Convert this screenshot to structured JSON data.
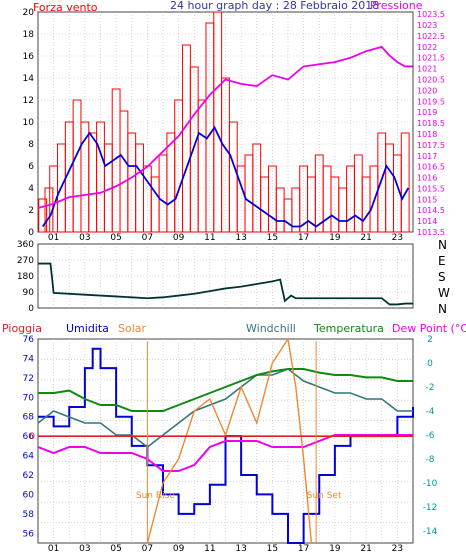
{
  "header": {
    "left_label": "Forza vento",
    "title": "24 hour graph day : 28 Febbraio 2018",
    "right_label": "Pressione"
  },
  "colors": {
    "wind": "#ff0000",
    "wind_avg": "#0000dd",
    "pressure": "#ee00ee",
    "direction": "#003333",
    "humidity": "#0000dd",
    "solar": "#ee8833",
    "windchill": "#337777",
    "temperature": "#118811",
    "dewpoint": "#ee00ee",
    "rain": "#dd2222",
    "header_blue": "#3333aa",
    "axis_teal": "#009999"
  },
  "hour_ticks": [
    "01",
    "03",
    "05",
    "07",
    "09",
    "11",
    "13",
    "15",
    "17",
    "19",
    "21",
    "23"
  ],
  "chart_data": [
    {
      "type": "line",
      "title": "24 hour graph day : 28 Febbraio 2018",
      "x_unit": "hour",
      "xlim": [
        0,
        24
      ],
      "y_left": {
        "label": "Forza vento",
        "ticks": [
          "0",
          "2",
          "4",
          "6",
          "8",
          "10",
          "12",
          "14",
          "16",
          "18",
          "20"
        ],
        "ylim": [
          0,
          20
        ]
      },
      "y_right": {
        "label": "Pressione",
        "ticks": [
          "1013.5",
          "1014",
          "1014.5",
          "1015",
          "1015.5",
          "1016",
          "1016.5",
          "1017",
          "1017.5",
          "1018",
          "1018.5",
          "1019",
          "1019.5",
          "1020",
          "1020.5",
          "1021",
          "1021.5",
          "1022",
          "1022.5",
          "1023",
          "1023.5"
        ],
        "ylim": [
          1013.5,
          1023.6
        ]
      },
      "series": [
        {
          "name": "Forza vento",
          "axis": "left",
          "style": "bars",
          "x": [
            0.3,
            0.7,
            1.0,
            1.5,
            2.0,
            2.5,
            3.0,
            3.5,
            4.0,
            4.5,
            5.0,
            5.5,
            6.0,
            6.5,
            7.0,
            7.5,
            8.0,
            8.5,
            9.0,
            9.5,
            10.0,
            10.5,
            11.0,
            11.5,
            12.0,
            12.5,
            13.0,
            13.5,
            14.0,
            14.5,
            15.0,
            15.5,
            16.0,
            16.5,
            17.0,
            17.5,
            18.0,
            18.5,
            19.0,
            19.5,
            20.0,
            20.5,
            21.0,
            21.5,
            22.0,
            22.5,
            23.0,
            23.5
          ],
          "y": [
            3,
            4,
            6,
            8,
            10,
            12,
            10,
            9,
            10,
            8,
            13,
            11,
            9,
            8,
            6,
            5,
            7,
            9,
            12,
            17,
            15,
            12,
            19,
            20,
            14,
            10,
            6,
            7,
            8,
            5,
            6,
            4,
            3,
            4,
            6,
            5,
            7,
            6,
            5,
            4,
            6,
            7,
            5,
            6,
            9,
            8,
            7,
            9
          ]
        },
        {
          "name": "Wind average",
          "axis": "left",
          "x": [
            0.3,
            0.8,
            1.3,
            1.8,
            2.3,
            2.8,
            3.3,
            3.8,
            4.3,
            4.8,
            5.3,
            5.8,
            6.3,
            6.8,
            7.3,
            7.8,
            8.3,
            8.8,
            9.3,
            9.8,
            10.3,
            10.8,
            11.3,
            11.8,
            12.3,
            12.8,
            13.3,
            13.8,
            14.3,
            14.8,
            15.3,
            15.8,
            16.3,
            16.8,
            17.3,
            17.8,
            18.3,
            18.8,
            19.3,
            19.8,
            20.3,
            20.8,
            21.3,
            21.8,
            22.3,
            22.8,
            23.3,
            23.7
          ],
          "y": [
            0.5,
            1.5,
            3.5,
            5,
            6.5,
            8,
            9,
            8,
            6,
            6.5,
            7,
            6,
            6,
            5,
            4,
            3,
            2.5,
            3,
            5,
            7,
            9,
            8.5,
            9.5,
            8,
            7,
            5,
            3,
            2.5,
            2,
            1.5,
            1,
            1,
            0.5,
            0.5,
            1,
            0.5,
            1,
            1.5,
            1,
            1,
            1.5,
            1,
            2,
            4,
            6,
            5,
            3,
            4
          ]
        },
        {
          "name": "Pressione",
          "axis": "right",
          "x": [
            0,
            1,
            2,
            3,
            4,
            5,
            6,
            7,
            8,
            9,
            10,
            11,
            12,
            13,
            14,
            15,
            16,
            17,
            18,
            19,
            20,
            21,
            22,
            22.5,
            23,
            23.5,
            24
          ],
          "y": [
            1014.6,
            1014.8,
            1015.1,
            1015.2,
            1015.3,
            1015.6,
            1016.0,
            1016.5,
            1017.2,
            1017.9,
            1018.9,
            1019.8,
            1020.5,
            1020.3,
            1020.2,
            1020.7,
            1020.5,
            1021.1,
            1021.2,
            1021.3,
            1021.5,
            1021.8,
            1022.0,
            1021.6,
            1021.3,
            1021.1,
            1021.1
          ]
        }
      ]
    },
    {
      "type": "line",
      "title": "",
      "xlim": [
        0,
        24
      ],
      "y_left": {
        "label": "",
        "ticks": [
          "0",
          "90",
          "180",
          "270",
          "360"
        ],
        "ylim": [
          0,
          360
        ]
      },
      "y_right": {
        "label": "",
        "ticks": [
          "N",
          "W",
          "S",
          "E",
          "N"
        ]
      },
      "series": [
        {
          "name": "",
          "axis": "left",
          "x": [
            0,
            0.8,
            1.0,
            3,
            5,
            7,
            8,
            9,
            10,
            11,
            12,
            13,
            14,
            15,
            15.5,
            15.8,
            16.2,
            16.5,
            17,
            18,
            20,
            21,
            22,
            22.5,
            23,
            23.5,
            24
          ],
          "y": [
            250,
            250,
            85,
            75,
            65,
            55,
            60,
            70,
            80,
            95,
            110,
            120,
            135,
            150,
            160,
            40,
            70,
            55,
            55,
            55,
            55,
            55,
            55,
            20,
            20,
            25,
            25
          ]
        }
      ]
    },
    {
      "type": "line",
      "title": "",
      "xlim": [
        0,
        24
      ],
      "legend": [
        "Pioggia",
        "Umidita",
        "Solar",
        "Windchill",
        "Temperatura",
        "Dew Point (°C)"
      ],
      "y_left": {
        "label": "",
        "ticks": [
          "56",
          "58",
          "60",
          "62",
          "64",
          "66",
          "68",
          "70",
          "72",
          "74",
          "76"
        ],
        "ylim": [
          55,
          76
        ]
      },
      "y_right": {
        "label": "",
        "ticks": [
          "-14",
          "-12",
          "-10",
          "-8",
          "-6",
          "-4",
          "-2",
          "0",
          "2"
        ],
        "ylim": [
          -15,
          2
        ]
      },
      "annotations": [
        {
          "label": "Sun Rise",
          "x": 7.0
        },
        {
          "label": "Sun Set",
          "x": 17.8
        }
      ],
      "series": [
        {
          "name": "Umidita",
          "axis": "left",
          "x": [
            0,
            1,
            2,
            3,
            3.5,
            4,
            5,
            6,
            7,
            8,
            9,
            10,
            11,
            12,
            13,
            14,
            15,
            16,
            17,
            18,
            19,
            20,
            21,
            22,
            23,
            24
          ],
          "y": [
            68,
            67,
            69,
            73,
            75,
            73,
            68,
            65,
            63,
            60,
            58,
            59,
            61,
            66,
            62,
            60,
            58,
            55,
            58,
            62,
            65,
            66,
            66,
            66,
            68,
            69
          ]
        },
        {
          "name": "Windchill",
          "axis": "right",
          "x": [
            0,
            1,
            2,
            3,
            4,
            5,
            6,
            7,
            8,
            9,
            10,
            11,
            12,
            13,
            14,
            15,
            16,
            17,
            18,
            19,
            20,
            21,
            22,
            23,
            24
          ],
          "y": [
            -5,
            -4,
            -4.5,
            -5,
            -5,
            -6,
            -6,
            -7,
            -6,
            -5,
            -4,
            -3.5,
            -3,
            -2,
            -1,
            -1,
            -0.5,
            -1.5,
            -2,
            -2.5,
            -2.5,
            -3,
            -3,
            -4,
            -4
          ]
        },
        {
          "name": "Temperatura",
          "axis": "right",
          "x": [
            0,
            1,
            2,
            3,
            4,
            5,
            6,
            7,
            8,
            9,
            10,
            11,
            12,
            13,
            14,
            15,
            16,
            17,
            18,
            19,
            20,
            21,
            22,
            23,
            24
          ],
          "y": [
            -2.5,
            -2.5,
            -2.3,
            -3,
            -3.5,
            -3.5,
            -4,
            -4,
            -4,
            -3.5,
            -3,
            -2.5,
            -2,
            -1.5,
            -1,
            -0.7,
            -0.5,
            -0.5,
            -0.8,
            -1,
            -1,
            -1.2,
            -1.2,
            -1.5,
            -1.5
          ]
        },
        {
          "name": "Dew Point (°C)",
          "axis": "right",
          "x": [
            0,
            1,
            2,
            3,
            4,
            5,
            6,
            7,
            8,
            9,
            10,
            11,
            12,
            13,
            14,
            15,
            16,
            17,
            18,
            19,
            20,
            21,
            22,
            23,
            24
          ],
          "y": [
            -7,
            -7.5,
            -7,
            -7,
            -7.5,
            -7.5,
            -7.5,
            -8,
            -9,
            -9,
            -8.5,
            -7,
            -6.5,
            -6.5,
            -6.5,
            -7,
            -7,
            -7,
            -6.5,
            -6,
            -6,
            -6,
            -6,
            -6,
            -6
          ]
        },
        {
          "name": "Solar",
          "axis": "right",
          "x": [
            7,
            8,
            9,
            10,
            11,
            12,
            13,
            14,
            15,
            16,
            16.5,
            17,
            17.5
          ],
          "y": [
            -15,
            -10,
            -8,
            -4,
            -3,
            -6,
            -2,
            -5,
            0,
            2,
            -2,
            -8,
            -15
          ]
        },
        {
          "name": "Pioggia",
          "axis": "left",
          "x": [
            0,
            24
          ],
          "y": [
            66,
            66
          ]
        }
      ]
    }
  ]
}
